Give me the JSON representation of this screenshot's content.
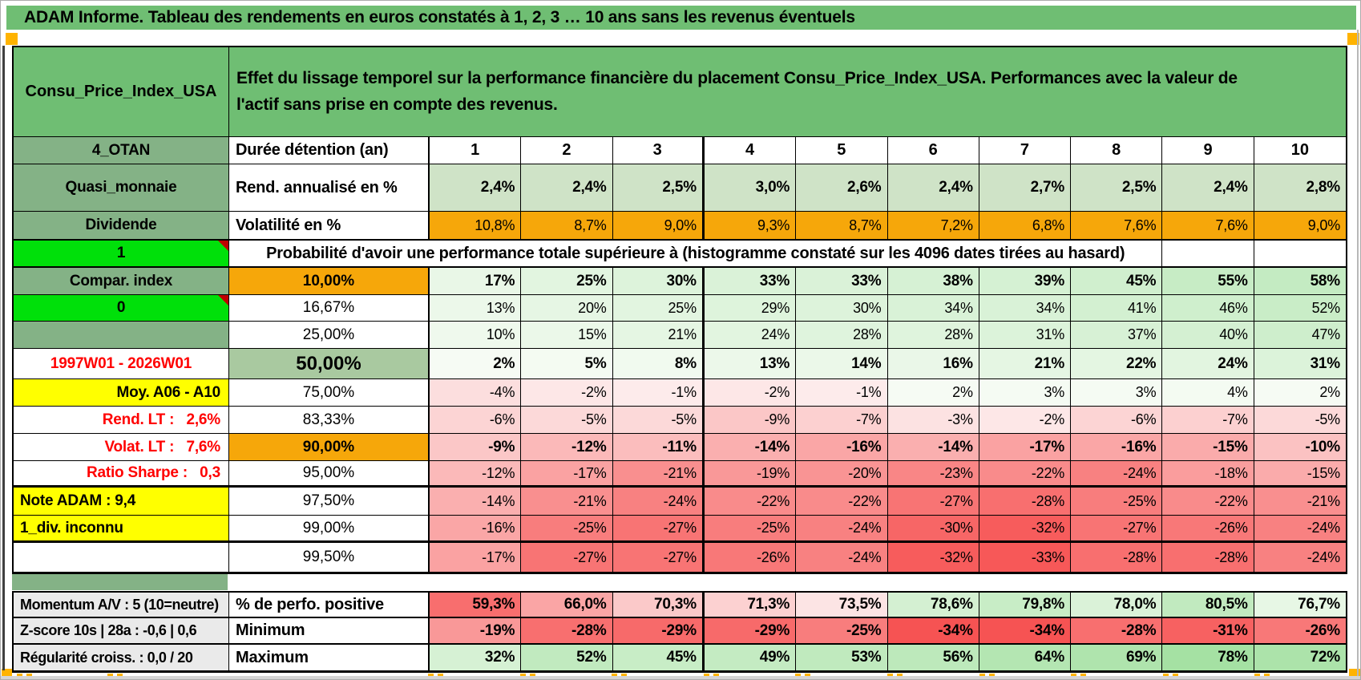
{
  "title": "ADAM Informe. Tableau des rendements en euros constatés à 1, 2, 3 … 10 ans sans les revenus éventuels",
  "asset_name": "Consu_Price_Index_USA",
  "description": "Effet du lissage temporel sur la performance financière du placement Consu_Price_Index_USA. Performances avec la valeur de l'actif sans prise en compte des revenus.",
  "duration_header": {
    "a": "4_OTAN",
    "b": "Durée détention (an)",
    "cols": [
      "1",
      "2",
      "3",
      "4",
      "5",
      "6",
      "7",
      "8",
      "9",
      "10"
    ]
  },
  "rows": [
    {
      "id": "rend-annualise",
      "a": "Quasi_monnaie",
      "a_style": "agreen",
      "b": "Rend. annualisé en %",
      "b_style": "blabel",
      "fill": "lightgreen",
      "bold": true,
      "values": [
        "2,4%",
        "2,4%",
        "2,5%",
        "3,0%",
        "2,6%",
        "2,4%",
        "2,7%",
        "2,5%",
        "2,4%",
        "2,8%"
      ]
    },
    {
      "id": "volatilite",
      "a": "Dividende",
      "a_style": "agreen",
      "b": "Volatilité en %",
      "b_style": "blabel",
      "fill": "orange",
      "bold": false,
      "values": [
        "10,8%",
        "8,7%",
        "9,0%",
        "9,3%",
        "8,7%",
        "7,2%",
        "6,8%",
        "7,6%",
        "7,6%",
        "9,0%"
      ]
    }
  ],
  "probability_row": {
    "a": "1",
    "text": "Probabilité d'avoir une performance totale supérieure à (histogramme constaté sur les 4096 dates tirées au hasard)"
  },
  "histogram_rows": [
    {
      "id": "p10",
      "a": "Compar. index",
      "a_style": "agreen",
      "b": "10,00%",
      "b_style": "borange",
      "fill": "zero",
      "bold": true,
      "values": [
        "17%",
        "25%",
        "30%",
        "33%",
        "33%",
        "38%",
        "39%",
        "45%",
        "55%",
        "58%"
      ]
    },
    {
      "id": "p16",
      "a": "0",
      "a_style": "abright",
      "note": true,
      "b": "16,67%",
      "b_style": "bwhite",
      "fill": "zero",
      "bold": false,
      "values": [
        "13%",
        "20%",
        "25%",
        "29%",
        "30%",
        "34%",
        "34%",
        "41%",
        "46%",
        "52%"
      ]
    },
    {
      "id": "p25",
      "a": "",
      "a_style": "agreen",
      "b": "25,00%",
      "b_style": "bwhite",
      "fill": "zero",
      "bold": false,
      "values": [
        "10%",
        "15%",
        "21%",
        "24%",
        "28%",
        "28%",
        "31%",
        "37%",
        "40%",
        "47%"
      ]
    },
    {
      "id": "p50",
      "a": "1997W01 - 2026W01",
      "a_style": "ared",
      "b": "50,00%",
      "b_style": "bgreen50",
      "fill": "zero",
      "bold": true,
      "values": [
        "2%",
        "5%",
        "8%",
        "13%",
        "14%",
        "16%",
        "21%",
        "22%",
        "24%",
        "31%"
      ]
    },
    {
      "id": "p75",
      "a": "Moy. A06 - A10",
      "a_style": "ayellow-r",
      "b": "75,00%",
      "b_style": "bwhite",
      "fill": "zero",
      "bold": false,
      "values": [
        "-4%",
        "-2%",
        "-1%",
        "-2%",
        "-1%",
        "2%",
        "3%",
        "3%",
        "4%",
        "2%"
      ]
    },
    {
      "id": "p83",
      "a": "Rend. LT :   2,6%",
      "a_style": "aredlbl",
      "b": "83,33%",
      "b_style": "bwhite",
      "fill": "zero",
      "bold": false,
      "values": [
        "-6%",
        "-5%",
        "-5%",
        "-9%",
        "-7%",
        "-3%",
        "-2%",
        "-6%",
        "-7%",
        "-5%"
      ]
    },
    {
      "id": "p90",
      "a": "Volat. LT :   7,6%",
      "a_style": "aredlbl",
      "b": "90,00%",
      "b_style": "borange",
      "fill": "zero",
      "bold": true,
      "values": [
        "-9%",
        "-12%",
        "-11%",
        "-14%",
        "-16%",
        "-14%",
        "-17%",
        "-16%",
        "-15%",
        "-10%"
      ]
    },
    {
      "id": "p95",
      "a": "Ratio Sharpe :   0,3",
      "a_style": "aredlbl",
      "b": "95,00%",
      "b_style": "bwhite",
      "fill": "zero",
      "bold": false,
      "values": [
        "-12%",
        "-17%",
        "-21%",
        "-19%",
        "-20%",
        "-23%",
        "-22%",
        "-24%",
        "-18%",
        "-15%"
      ]
    },
    {
      "id": "p975",
      "a": "Note ADAM : 9,4",
      "a_style": "ayellow-l",
      "b": "97,50%",
      "b_style": "bwhite",
      "fill": "zero",
      "bold": false,
      "values": [
        "-14%",
        "-21%",
        "-24%",
        "-22%",
        "-22%",
        "-27%",
        "-28%",
        "-25%",
        "-22%",
        "-21%"
      ]
    },
    {
      "id": "p99",
      "a": "1_div. inconnu",
      "a_style": "ayellow-l",
      "b": "99,00%",
      "b_style": "bwhite",
      "fill": "zero",
      "bold": false,
      "values": [
        "-16%",
        "-25%",
        "-27%",
        "-25%",
        "-24%",
        "-30%",
        "-32%",
        "-27%",
        "-26%",
        "-24%"
      ]
    },
    {
      "id": "p995",
      "a": "",
      "a_style": "awhite",
      "b": "99,50%",
      "b_style": "bwhite",
      "fill": "zero",
      "bold": false,
      "values": [
        "-17%",
        "-27%",
        "-27%",
        "-26%",
        "-24%",
        "-32%",
        "-33%",
        "-28%",
        "-28%",
        "-24%"
      ]
    }
  ],
  "footer_rows": [
    {
      "id": "perfo-positive",
      "a": "Momentum A/V : 5 (10=neutre)",
      "b": "% de perfo. positive",
      "fill": "perfo",
      "values": [
        "59,3%",
        "66,0%",
        "70,3%",
        "71,3%",
        "73,5%",
        "78,6%",
        "79,8%",
        "78,0%",
        "80,5%",
        "76,7%"
      ]
    },
    {
      "id": "minimum",
      "a": "Z-score 10s | 28a : -0,6 | 0,6",
      "b": "Minimum",
      "fill": "minrow",
      "values": [
        "-19%",
        "-28%",
        "-29%",
        "-29%",
        "-25%",
        "-34%",
        "-34%",
        "-28%",
        "-31%",
        "-26%"
      ]
    },
    {
      "id": "maximum",
      "a": "Régularité croiss. : 0,0 / 20",
      "b": "Maximum",
      "fill": "maxrow",
      "values": [
        "32%",
        "52%",
        "45%",
        "49%",
        "53%",
        "56%",
        "64%",
        "69%",
        "78%",
        "72%"
      ]
    }
  ],
  "colors": {
    "title_green": "#6FBE73",
    "muted_green": "#84B286",
    "bright_green": "#00E00A",
    "orange": "#F6A70A",
    "yellow": "#FFFF00",
    "green_50": "#A9C9A0",
    "light_green_row": "#CFE3C7",
    "gray_label": "#EAEAEA",
    "red_text": "#FF0000",
    "note_red": "#C00000",
    "page_mark_orange": "#FFB300",
    "ramp_green_min": "#F8FCF6",
    "ramp_green_max": "#9EDF9C",
    "ramp_red_min": "#FDF0F0",
    "ramp_red_max": "#F64A4A"
  }
}
